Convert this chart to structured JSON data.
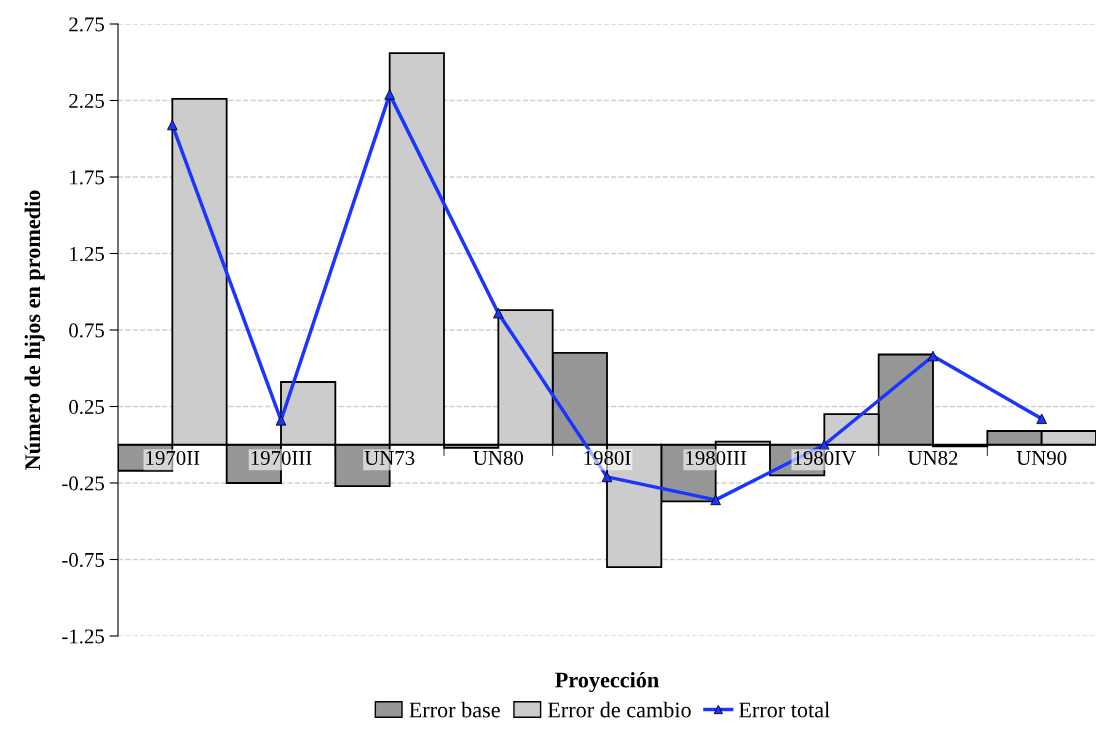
{
  "chart_data": {
    "type": "bar",
    "xlabel": "Proyección",
    "ylabel": "Número de hijos en promedio",
    "categories": [
      "1970II",
      "1970III",
      "UN73",
      "UN80",
      "1980I",
      "1980III",
      "1980IV",
      "UN82",
      "UN90"
    ],
    "series": [
      {
        "name": "Error base",
        "color": "#969696",
        "values": [
          -0.17,
          -0.25,
          -0.27,
          -0.02,
          0.6,
          -0.37,
          -0.2,
          0.59,
          0.09
        ]
      },
      {
        "name": "Error de cambio",
        "color": "#cccccc",
        "values": [
          2.26,
          0.41,
          2.56,
          0.88,
          -0.8,
          0.02,
          0.2,
          -0.01,
          0.09
        ]
      },
      {
        "name": "Error total",
        "type": "line",
        "color": "#1a35ff",
        "marker": "triangle",
        "line_style": "solid",
        "values": [
          2.09,
          0.16,
          2.29,
          0.86,
          -0.21,
          -0.36,
          0.0,
          0.58,
          0.17
        ]
      }
    ],
    "ylim": [
      -1.25,
      2.75
    ],
    "yticks": [
      {
        "value": -1.25,
        "label": "-1.25"
      },
      {
        "value": -0.75,
        "label": "-0.75"
      },
      {
        "value": -0.25,
        "label": "-0.25"
      },
      0.25,
      0.75,
      1.25,
      1.75,
      2.25,
      2.75
    ],
    "grid": "y",
    "legend": "bottom"
  }
}
